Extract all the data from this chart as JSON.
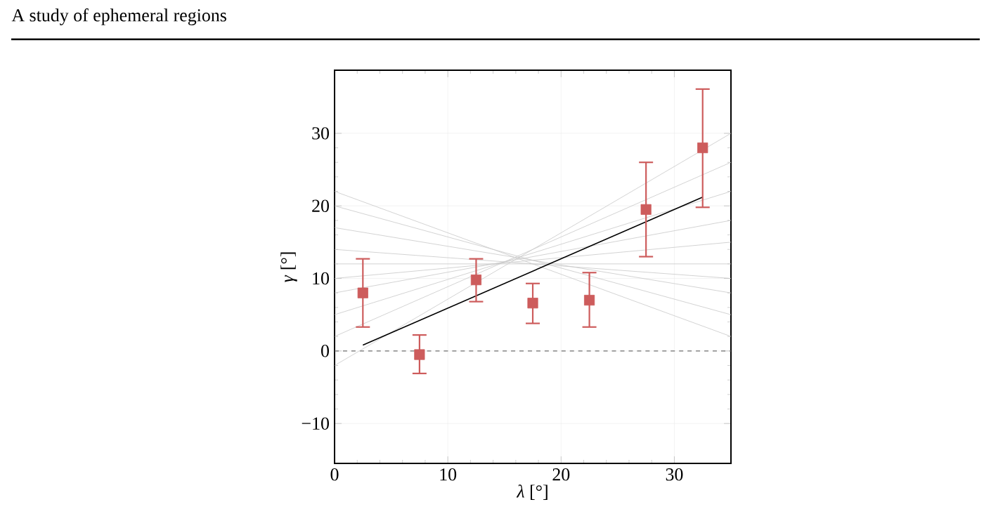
{
  "chart_data": {
    "type": "scatter",
    "title": "A study of ephemeral regions",
    "xlabel": "*λ* [°]",
    "ylabel": "*γ* [°]",
    "xlim": [
      0,
      35
    ],
    "ylim": [
      -15.5,
      38.7
    ],
    "xticks": [
      0,
      10,
      20,
      30
    ],
    "yticks": [
      {
        "value": -10,
        "label": "−10"
      },
      0,
      10,
      20,
      30
    ],
    "grid": true,
    "series": [
      {
        "type": "line",
        "color": "#c8c8c8",
        "x": [
          0,
          35
        ],
        "values": [
          20,
          5
        ]
      },
      {
        "type": "line",
        "color": "#c8c8c8",
        "x": [
          0,
          35
        ],
        "values": [
          17,
          8
        ]
      },
      {
        "type": "line",
        "color": "#c8c8c8",
        "x": [
          0,
          35
        ],
        "values": [
          14,
          10
        ]
      },
      {
        "type": "line",
        "color": "#c8c8c8",
        "x": [
          0,
          35
        ],
        "values": [
          12,
          12
        ]
      },
      {
        "type": "line",
        "color": "#c8c8c8",
        "x": [
          0,
          35
        ],
        "values": [
          10,
          15
        ]
      },
      {
        "type": "line",
        "color": "#c8c8c8",
        "x": [
          0,
          35
        ],
        "values": [
          8,
          18
        ]
      },
      {
        "type": "line",
        "color": "#c8c8c8",
        "x": [
          0,
          35
        ],
        "values": [
          5,
          22
        ]
      },
      {
        "type": "line",
        "color": "#c8c8c8",
        "x": [
          0,
          35
        ],
        "values": [
          2,
          26
        ]
      },
      {
        "type": "line",
        "color": "#c8c8c8",
        "x": [
          0,
          35
        ],
        "values": [
          22,
          2
        ]
      },
      {
        "type": "line",
        "color": "#c8c8c8",
        "x": [
          0,
          35
        ],
        "values": [
          -2,
          30
        ]
      },
      {
        "type": "line",
        "color": "#000000",
        "x": [
          2.5,
          32.5
        ],
        "values": [
          0.8,
          21.2
        ]
      },
      {
        "color": "#cd5c5c",
        "marker": "square",
        "x": [
          2.5,
          7.5,
          12.5,
          17.5,
          22.5,
          27.5,
          32.5
        ],
        "values": [
          8,
          -0.5,
          9.8,
          6.6,
          7.0,
          19.5,
          28
        ],
        "errors": [
          [
            3.3,
            12.7
          ],
          [
            -3.1,
            2.2
          ],
          [
            6.8,
            12.7
          ],
          [
            3.8,
            9.3
          ],
          [
            3.3,
            10.8
          ],
          [
            13,
            26
          ],
          [
            19.8,
            36.1
          ]
        ]
      }
    ],
    "ref_lines": [
      {
        "axis": "y",
        "value": 0,
        "color": "#707070",
        "line_style": "dashed"
      }
    ]
  }
}
